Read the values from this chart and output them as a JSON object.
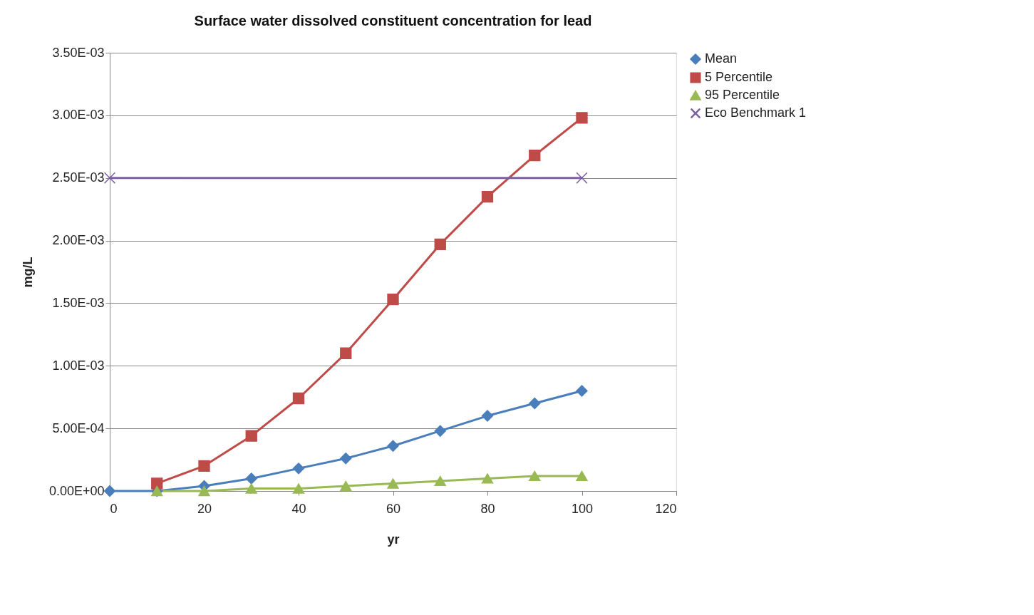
{
  "chart_data": {
    "type": "line",
    "title": "Surface water dissolved constituent concentration for lead",
    "xlabel": "yr",
    "ylabel": "mg/L",
    "xlim": [
      0,
      120
    ],
    "xticks": [
      0,
      20,
      40,
      60,
      80,
      100,
      120
    ],
    "ylim": [
      0,
      0.0035
    ],
    "yticks": [
      {
        "value": 0,
        "label": "0.00E+00"
      },
      {
        "value": 0.0005,
        "label": "5.00E-04"
      },
      {
        "value": 0.001,
        "label": "1.00E-03"
      },
      {
        "value": 0.0015,
        "label": "1.50E-03"
      },
      {
        "value": 0.002,
        "label": "2.00E-03"
      },
      {
        "value": 0.0025,
        "label": "2.50E-03"
      },
      {
        "value": 0.003,
        "label": "3.00E-03"
      },
      {
        "value": 0.0035,
        "label": "3.50E-03"
      }
    ],
    "grid": "y",
    "legend": "right",
    "series": [
      {
        "name": "Mean",
        "color": "#4a7ebb",
        "marker": "diamond",
        "x": [
          0,
          10,
          20,
          30,
          40,
          50,
          60,
          70,
          80,
          90,
          100
        ],
        "values": [
          0,
          0,
          4e-05,
          0.0001,
          0.00018,
          0.00026,
          0.00036,
          0.00048,
          0.0006,
          0.0007,
          0.0008
        ]
      },
      {
        "name": "5 Percentile",
        "color": "#be4b48",
        "marker": "square",
        "x": [
          10,
          20,
          30,
          40,
          50,
          60,
          70,
          80,
          90,
          100
        ],
        "values": [
          6e-05,
          0.0002,
          0.00044,
          0.00074,
          0.0011,
          0.00153,
          0.00197,
          0.00235,
          0.00268,
          0.00298
        ]
      },
      {
        "name": "95 Percentile",
        "color": "#98b954",
        "marker": "triangle",
        "x": [
          10,
          20,
          30,
          40,
          50,
          60,
          70,
          80,
          90,
          100
        ],
        "values": [
          0,
          0,
          2e-05,
          2e-05,
          4e-05,
          6e-05,
          8e-05,
          0.0001,
          0.00012,
          0.00012
        ]
      },
      {
        "name": "Eco Benchmark 1",
        "color": "#7d60a0",
        "marker": "cross",
        "x": [
          0,
          100
        ],
        "values": [
          0.0025,
          0.0025
        ]
      }
    ]
  }
}
